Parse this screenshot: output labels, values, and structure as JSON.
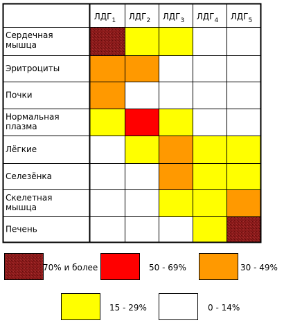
{
  "chart_data": {
    "type": "heatmap",
    "columns": [
      {
        "base": "ЛДГ",
        "sub": "1"
      },
      {
        "base": "ЛДГ",
        "sub": "2"
      },
      {
        "base": "ЛДГ",
        "sub": "3"
      },
      {
        "base": "ЛДГ",
        "sub": "4"
      },
      {
        "base": "ЛДГ",
        "sub": "5"
      }
    ],
    "rows": [
      {
        "label": [
          "Сердечная",
          "мышца"
        ],
        "levels": [
          4,
          1,
          1,
          0,
          0
        ]
      },
      {
        "label": [
          "Эритроциты"
        ],
        "levels": [
          2,
          2,
          0,
          0,
          0
        ]
      },
      {
        "label": [
          "Почки"
        ],
        "levels": [
          2,
          0,
          0,
          0,
          0
        ]
      },
      {
        "label": [
          "Нормальная",
          "плазма"
        ],
        "levels": [
          1,
          3,
          1,
          0,
          0
        ]
      },
      {
        "label": [
          "Лёгкие"
        ],
        "levels": [
          0,
          1,
          2,
          1,
          1
        ]
      },
      {
        "label": [
          "Селезёнка"
        ],
        "levels": [
          0,
          0,
          2,
          1,
          1
        ]
      },
      {
        "label": [
          "Скелетная",
          "мышца"
        ],
        "levels": [
          0,
          0,
          1,
          1,
          2
        ]
      },
      {
        "label": [
          "Печень"
        ],
        "levels": [
          0,
          0,
          0,
          1,
          4
        ]
      }
    ],
    "legend": [
      {
        "level": 4,
        "label": "70% и более",
        "color": "#8b1a1a"
      },
      {
        "level": 3,
        "label": "50 - 69%",
        "color": "#ff0000"
      },
      {
        "level": 2,
        "label": "30 - 49%",
        "color": "#ff9900"
      },
      {
        "level": 1,
        "label": "15 - 29%",
        "color": "#ffff00"
      },
      {
        "level": 0,
        "label": "0 - 14%",
        "color": "#ffffff"
      }
    ]
  }
}
